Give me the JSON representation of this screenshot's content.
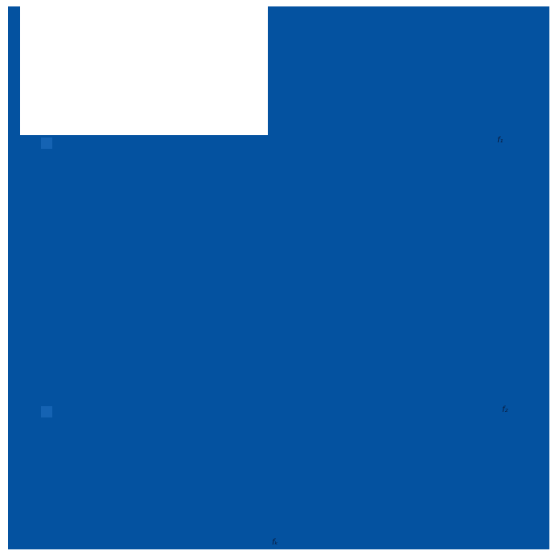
{
  "palette": {
    "page_background": "#ffffff",
    "primary_blue": "#0452A0",
    "swatch_blue": "#1563B3",
    "label_ink": "#0A1C3E"
  },
  "canvas": {
    "white_panel": {
      "content": ""
    },
    "swatches": [
      {
        "name": "swatch-1"
      },
      {
        "name": "swatch-2"
      }
    ],
    "labels": {
      "right_top": "f₁",
      "right_middle": "f₂",
      "bottom_center": "fₖ"
    }
  }
}
